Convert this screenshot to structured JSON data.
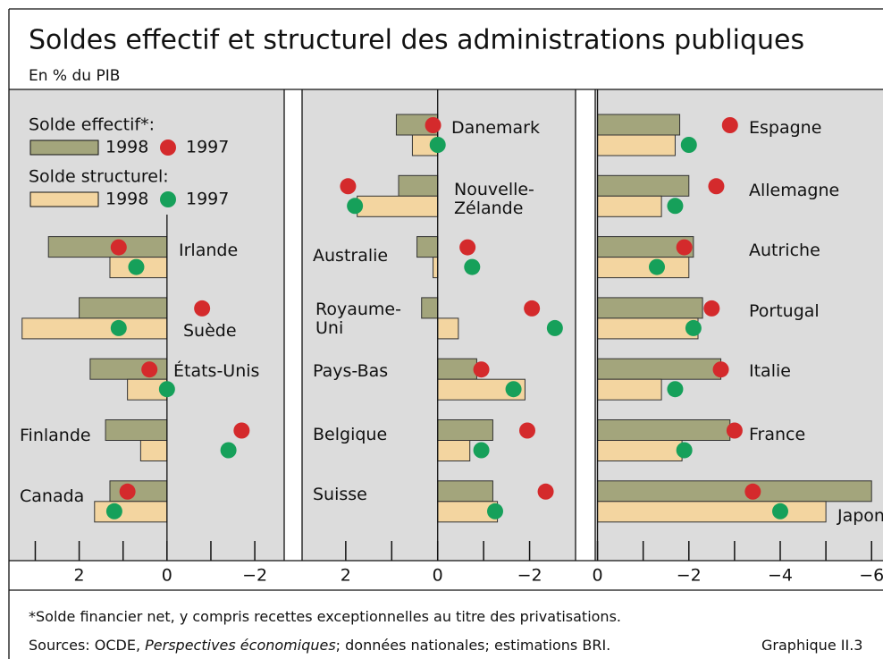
{
  "title": "Soldes effectif et structurel des administrations publiques",
  "subtitle": "En % du PIB",
  "legend": [
    {
      "title": "Solde effectif*:",
      "items": [
        {
          "name": "1998",
          "color": "#a3a57c",
          "mark": "bar"
        },
        {
          "name": "1997",
          "color": "#d42a2c",
          "mark": "dot"
        }
      ]
    },
    {
      "title": "Solde structurel:",
      "items": [
        {
          "name": "1998",
          "color": "#f3d5a0",
          "mark": "bar"
        },
        {
          "name": "1997",
          "color": "#16a05a",
          "mark": "dot"
        }
      ]
    }
  ],
  "chart_data": [
    {
      "type": "hbar-dot",
      "categories": [
        "Irlande",
        "Suède",
        "États-Unis",
        "Finlande",
        "Canada"
      ],
      "series": [
        {
          "values": [
            2.7,
            2.0,
            1.75,
            1.4,
            1.3
          ]
        },
        {
          "values": [
            1.1,
            -0.8,
            0.4,
            -1.7,
            0.9
          ]
        },
        {
          "values": [
            1.3,
            3.3,
            0.9,
            0.6,
            1.65
          ]
        },
        {
          "values": [
            0.7,
            1.1,
            0.0,
            -1.4,
            1.2
          ]
        }
      ],
      "xlim": [
        3.6,
        -2.67
      ],
      "xticks": [
        {
          "value": 2,
          "label": "2"
        },
        0,
        {
          "value": -2,
          "label": "−2"
        }
      ],
      "minor_xticks": [
        3,
        1,
        -1
      ]
    },
    {
      "type": "hbar-dot",
      "categories": [
        "Danemark",
        "Nouvelle-Zélande",
        "Australie",
        "Royaume-Uni",
        "Pays-Bas",
        "Belgique",
        "Suisse"
      ],
      "series": [
        {
          "values": [
            0.9,
            0.85,
            0.45,
            0.35,
            -0.85,
            -1.2,
            -1.2
          ]
        },
        {
          "values": [
            0.1,
            1.95,
            -0.65,
            -2.05,
            -0.95,
            -1.95,
            -2.35
          ]
        },
        {
          "values": [
            0.55,
            1.75,
            0.1,
            -0.45,
            -1.9,
            -0.7,
            -1.3
          ]
        },
        {
          "values": [
            0.0,
            1.8,
            -0.75,
            -2.55,
            -1.65,
            -0.95,
            -1.25
          ]
        }
      ],
      "xlim": [
        2.95,
        -3.0
      ],
      "xticks": [
        {
          "value": 2,
          "label": "2"
        },
        0,
        {
          "value": -2,
          "label": "−2"
        }
      ],
      "minor_xticks": [
        1,
        -1
      ]
    },
    {
      "type": "hbar-dot",
      "categories": [
        "Espagne",
        "Allemagne",
        "Autriche",
        "Portugal",
        "Italie",
        "France",
        "Japon"
      ],
      "series": [
        {
          "values": [
            -1.8,
            -2.0,
            -2.1,
            -2.3,
            -2.7,
            -2.9,
            -6.0
          ]
        },
        {
          "values": [
            -2.9,
            -2.6,
            -1.9,
            -2.5,
            -2.7,
            -3.0,
            -3.4
          ]
        },
        {
          "values": [
            -1.7,
            -1.4,
            -2.0,
            -2.2,
            -1.4,
            -1.85,
            -5.0
          ]
        },
        {
          "values": [
            -2.0,
            -1.7,
            -1.3,
            -2.1,
            -1.7,
            -1.9,
            -4.0
          ]
        }
      ],
      "xlim": [
        0.05,
        -6.25
      ],
      "xticks": [
        0,
        {
          "value": -2,
          "label": "−2"
        },
        {
          "value": -4,
          "label": "−4"
        },
        {
          "value": -6,
          "label": "−6"
        }
      ],
      "minor_xticks": [
        -1,
        -3,
        -5
      ]
    }
  ],
  "footnote": "*Solde financier net, y compris recettes exceptionnelles au titre des privatisations.",
  "sources": [
    "Sources: OCDE, ",
    "Perspectives économiques",
    "; données nationales; estimations BRI."
  ],
  "figure_label": "Graphique II.3"
}
